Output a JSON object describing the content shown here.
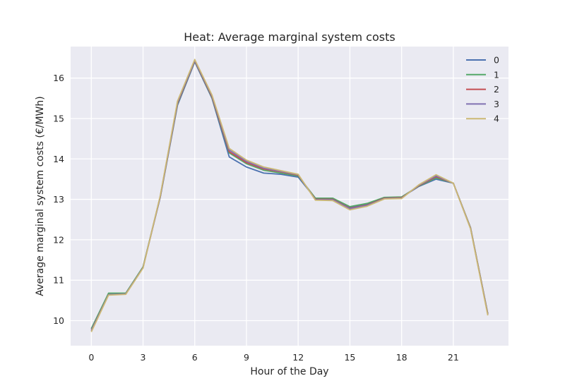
{
  "chart_data": {
    "type": "line",
    "title": "Heat: Average marginal system costs",
    "xlabel": "Hour of the Day",
    "ylabel": "Average marginal system costs (€/MWh)",
    "xlim": [
      -1.2,
      24.2
    ],
    "ylim": [
      9.38,
      16.78
    ],
    "xticks": [
      0,
      3,
      6,
      9,
      12,
      15,
      18,
      21
    ],
    "yticks": [
      10,
      11,
      12,
      13,
      14,
      15,
      16
    ],
    "grid": true,
    "legend_position": "top-right",
    "x": [
      0,
      1,
      2,
      3,
      4,
      5,
      6,
      7,
      8,
      9,
      10,
      11,
      12,
      13,
      14,
      15,
      16,
      17,
      18,
      19,
      20,
      21,
      22,
      23
    ],
    "series": [
      {
        "name": "0",
        "color": "#4c72b0",
        "values": [
          9.8,
          10.65,
          10.66,
          11.32,
          13.05,
          15.33,
          16.4,
          15.5,
          14.05,
          13.8,
          13.65,
          13.62,
          13.55,
          13.02,
          13.02,
          12.8,
          12.88,
          13.03,
          13.05,
          13.32,
          13.5,
          13.4,
          12.28,
          10.17
        ]
      },
      {
        "name": "1",
        "color": "#55a868",
        "values": [
          9.8,
          10.68,
          10.68,
          11.33,
          13.07,
          15.36,
          16.42,
          15.52,
          14.15,
          13.88,
          13.72,
          13.65,
          13.58,
          13.03,
          13.03,
          12.82,
          12.9,
          13.05,
          13.06,
          13.33,
          13.53,
          13.4,
          12.3,
          10.17
        ]
      },
      {
        "name": "2",
        "color": "#c44e52",
        "values": [
          9.76,
          10.64,
          10.66,
          11.31,
          13.07,
          15.38,
          16.43,
          15.54,
          14.18,
          13.91,
          13.75,
          13.68,
          13.6,
          13.0,
          13.0,
          12.78,
          12.86,
          13.03,
          13.04,
          13.34,
          13.56,
          13.4,
          12.29,
          10.16
        ]
      },
      {
        "name": "3",
        "color": "#8172b2",
        "values": [
          9.75,
          10.64,
          10.66,
          11.31,
          13.08,
          15.4,
          16.44,
          15.56,
          14.22,
          13.94,
          13.77,
          13.69,
          13.61,
          12.99,
          12.99,
          12.77,
          12.85,
          13.02,
          13.03,
          13.35,
          13.58,
          13.4,
          12.28,
          10.15
        ]
      },
      {
        "name": "4",
        "color": "#ccb974",
        "values": [
          9.72,
          10.63,
          10.65,
          11.3,
          13.09,
          15.43,
          16.46,
          15.58,
          14.26,
          13.97,
          13.8,
          13.71,
          13.62,
          12.98,
          12.97,
          12.74,
          12.83,
          13.01,
          13.02,
          13.36,
          13.61,
          13.4,
          12.27,
          10.13
        ]
      }
    ]
  },
  "colors": {
    "plot_background": "#eaeaf2",
    "grid": "#ffffff",
    "text": "#262626"
  }
}
